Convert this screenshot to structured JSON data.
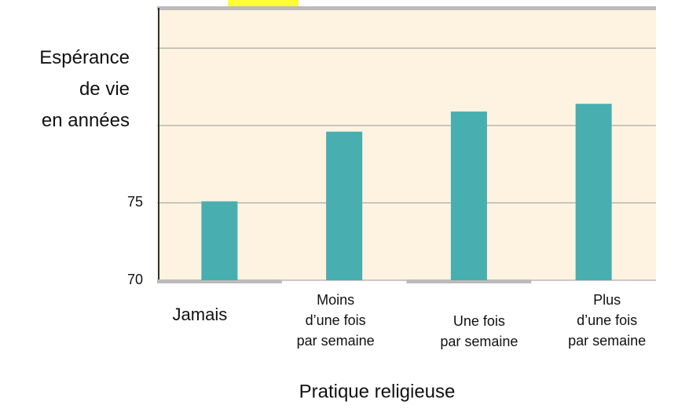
{
  "chart_data": {
    "type": "bar",
    "categories": [
      [
        "Jamais"
      ],
      [
        "Moins",
        "d’une fois",
        "par semaine"
      ],
      [
        "Une fois",
        "par semaine"
      ],
      [
        "Plus",
        "d’une fois",
        "par semaine"
      ]
    ],
    "values": [
      75.1,
      79.6,
      80.9,
      81.4
    ],
    "color": "#48aeb0",
    "ylim": [
      70,
      87.6
    ],
    "yticks": [
      70,
      75
    ],
    "gridlines": [
      80,
      85
    ],
    "y_label": [
      "Espérance",
      "de vie",
      "en années"
    ],
    "x_label": "Pratique religieuse"
  }
}
